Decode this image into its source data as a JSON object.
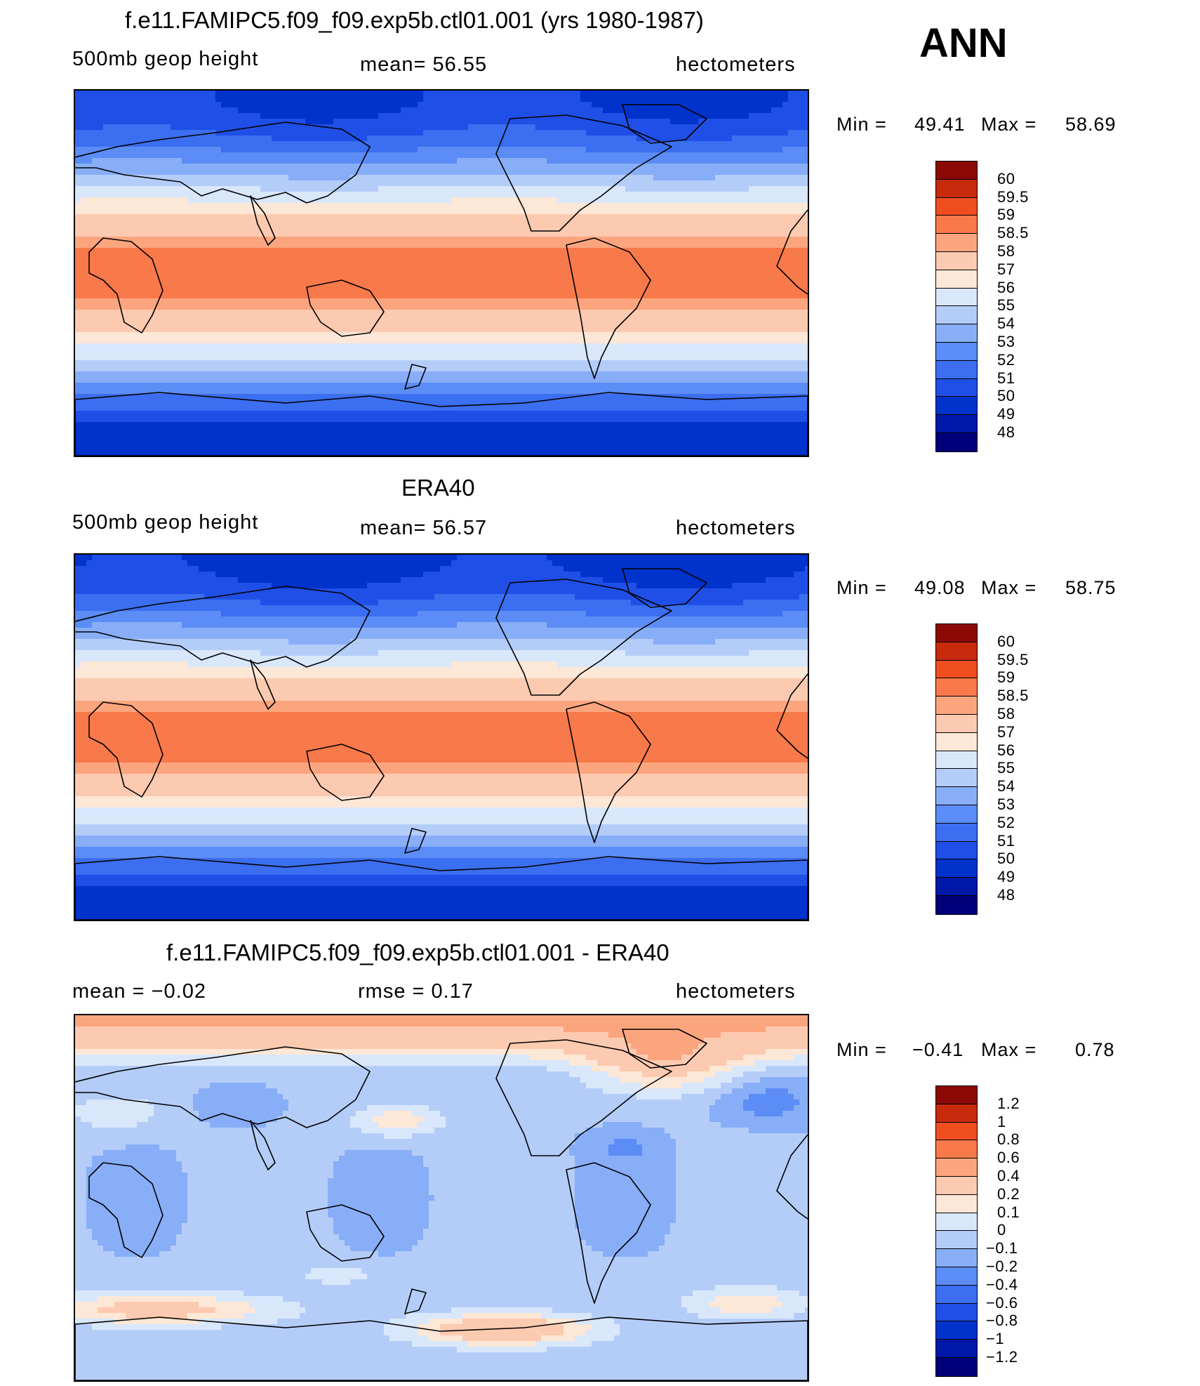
{
  "season": "ANN",
  "panels": [
    {
      "title": "f.e11.FAMIPC5.f09_f09.exp5b.ctl01.001 (yrs 1980-1987)",
      "left_label": "500mb  geop  height",
      "center_label": "mean=   56.55",
      "right_label": "hectometers",
      "min_label": "Min  =",
      "min_value": "49.41",
      "max_label": "Max  =",
      "max_value": "58.69",
      "field": "model",
      "legend_levels": [
        "60",
        "59.5",
        "59",
        "58.5",
        "58",
        "57",
        "56",
        "55",
        "54",
        "53",
        "52",
        "51",
        "50",
        "49",
        "48"
      ]
    },
    {
      "title": "ERA40",
      "left_label": "500mb  geop  height",
      "center_label": "mean=   56.57",
      "right_label": "hectometers",
      "min_label": "Min  =",
      "min_value": "49.08",
      "max_label": "Max  =",
      "max_value": "58.75",
      "field": "obs",
      "legend_levels": [
        "60",
        "59.5",
        "59",
        "58.5",
        "58",
        "57",
        "56",
        "55",
        "54",
        "53",
        "52",
        "51",
        "50",
        "49",
        "48"
      ]
    },
    {
      "title": "f.e11.FAMIPC5.f09_f09.exp5b.ctl01.001 - ERA40",
      "left_label": "mean  =    −0.02",
      "center_label": "rmse  =     0.17",
      "right_label": "hectometers",
      "min_label": "Min  =",
      "min_value": "−0.41",
      "max_label": "Max  =",
      "max_value": "0.78",
      "field": "diff",
      "legend_levels": [
        "1.2",
        "1",
        "0.8",
        "0.6",
        "0.4",
        "0.2",
        "0.1",
        "0",
        "−0.1",
        "−0.2",
        "−0.4",
        "−0.6",
        "−0.8",
        "−1",
        "−1.2"
      ]
    }
  ],
  "colors": {
    "abs_scale": [
      "#00007a",
      "#0018a8",
      "#0033cc",
      "#1f4fe6",
      "#3b6ef0",
      "#5c8cf5",
      "#88aef7",
      "#b4cdf8",
      "#d9e7fb",
      "#fde7d6",
      "#fccab0",
      "#fba57f",
      "#f8794a",
      "#f04e1f",
      "#c82a0c",
      "#8c0a05"
    ],
    "diff_scale": [
      "#00007a",
      "#0018a8",
      "#0033cc",
      "#1f4fe6",
      "#3b6ef0",
      "#5c8cf5",
      "#88aef7",
      "#b4cdf8",
      "#d9e7fb",
      "#fde7d6",
      "#fccab0",
      "#fba57f",
      "#f8794a",
      "#f04e1f",
      "#c82a0c",
      "#8c0a05"
    ]
  }
}
